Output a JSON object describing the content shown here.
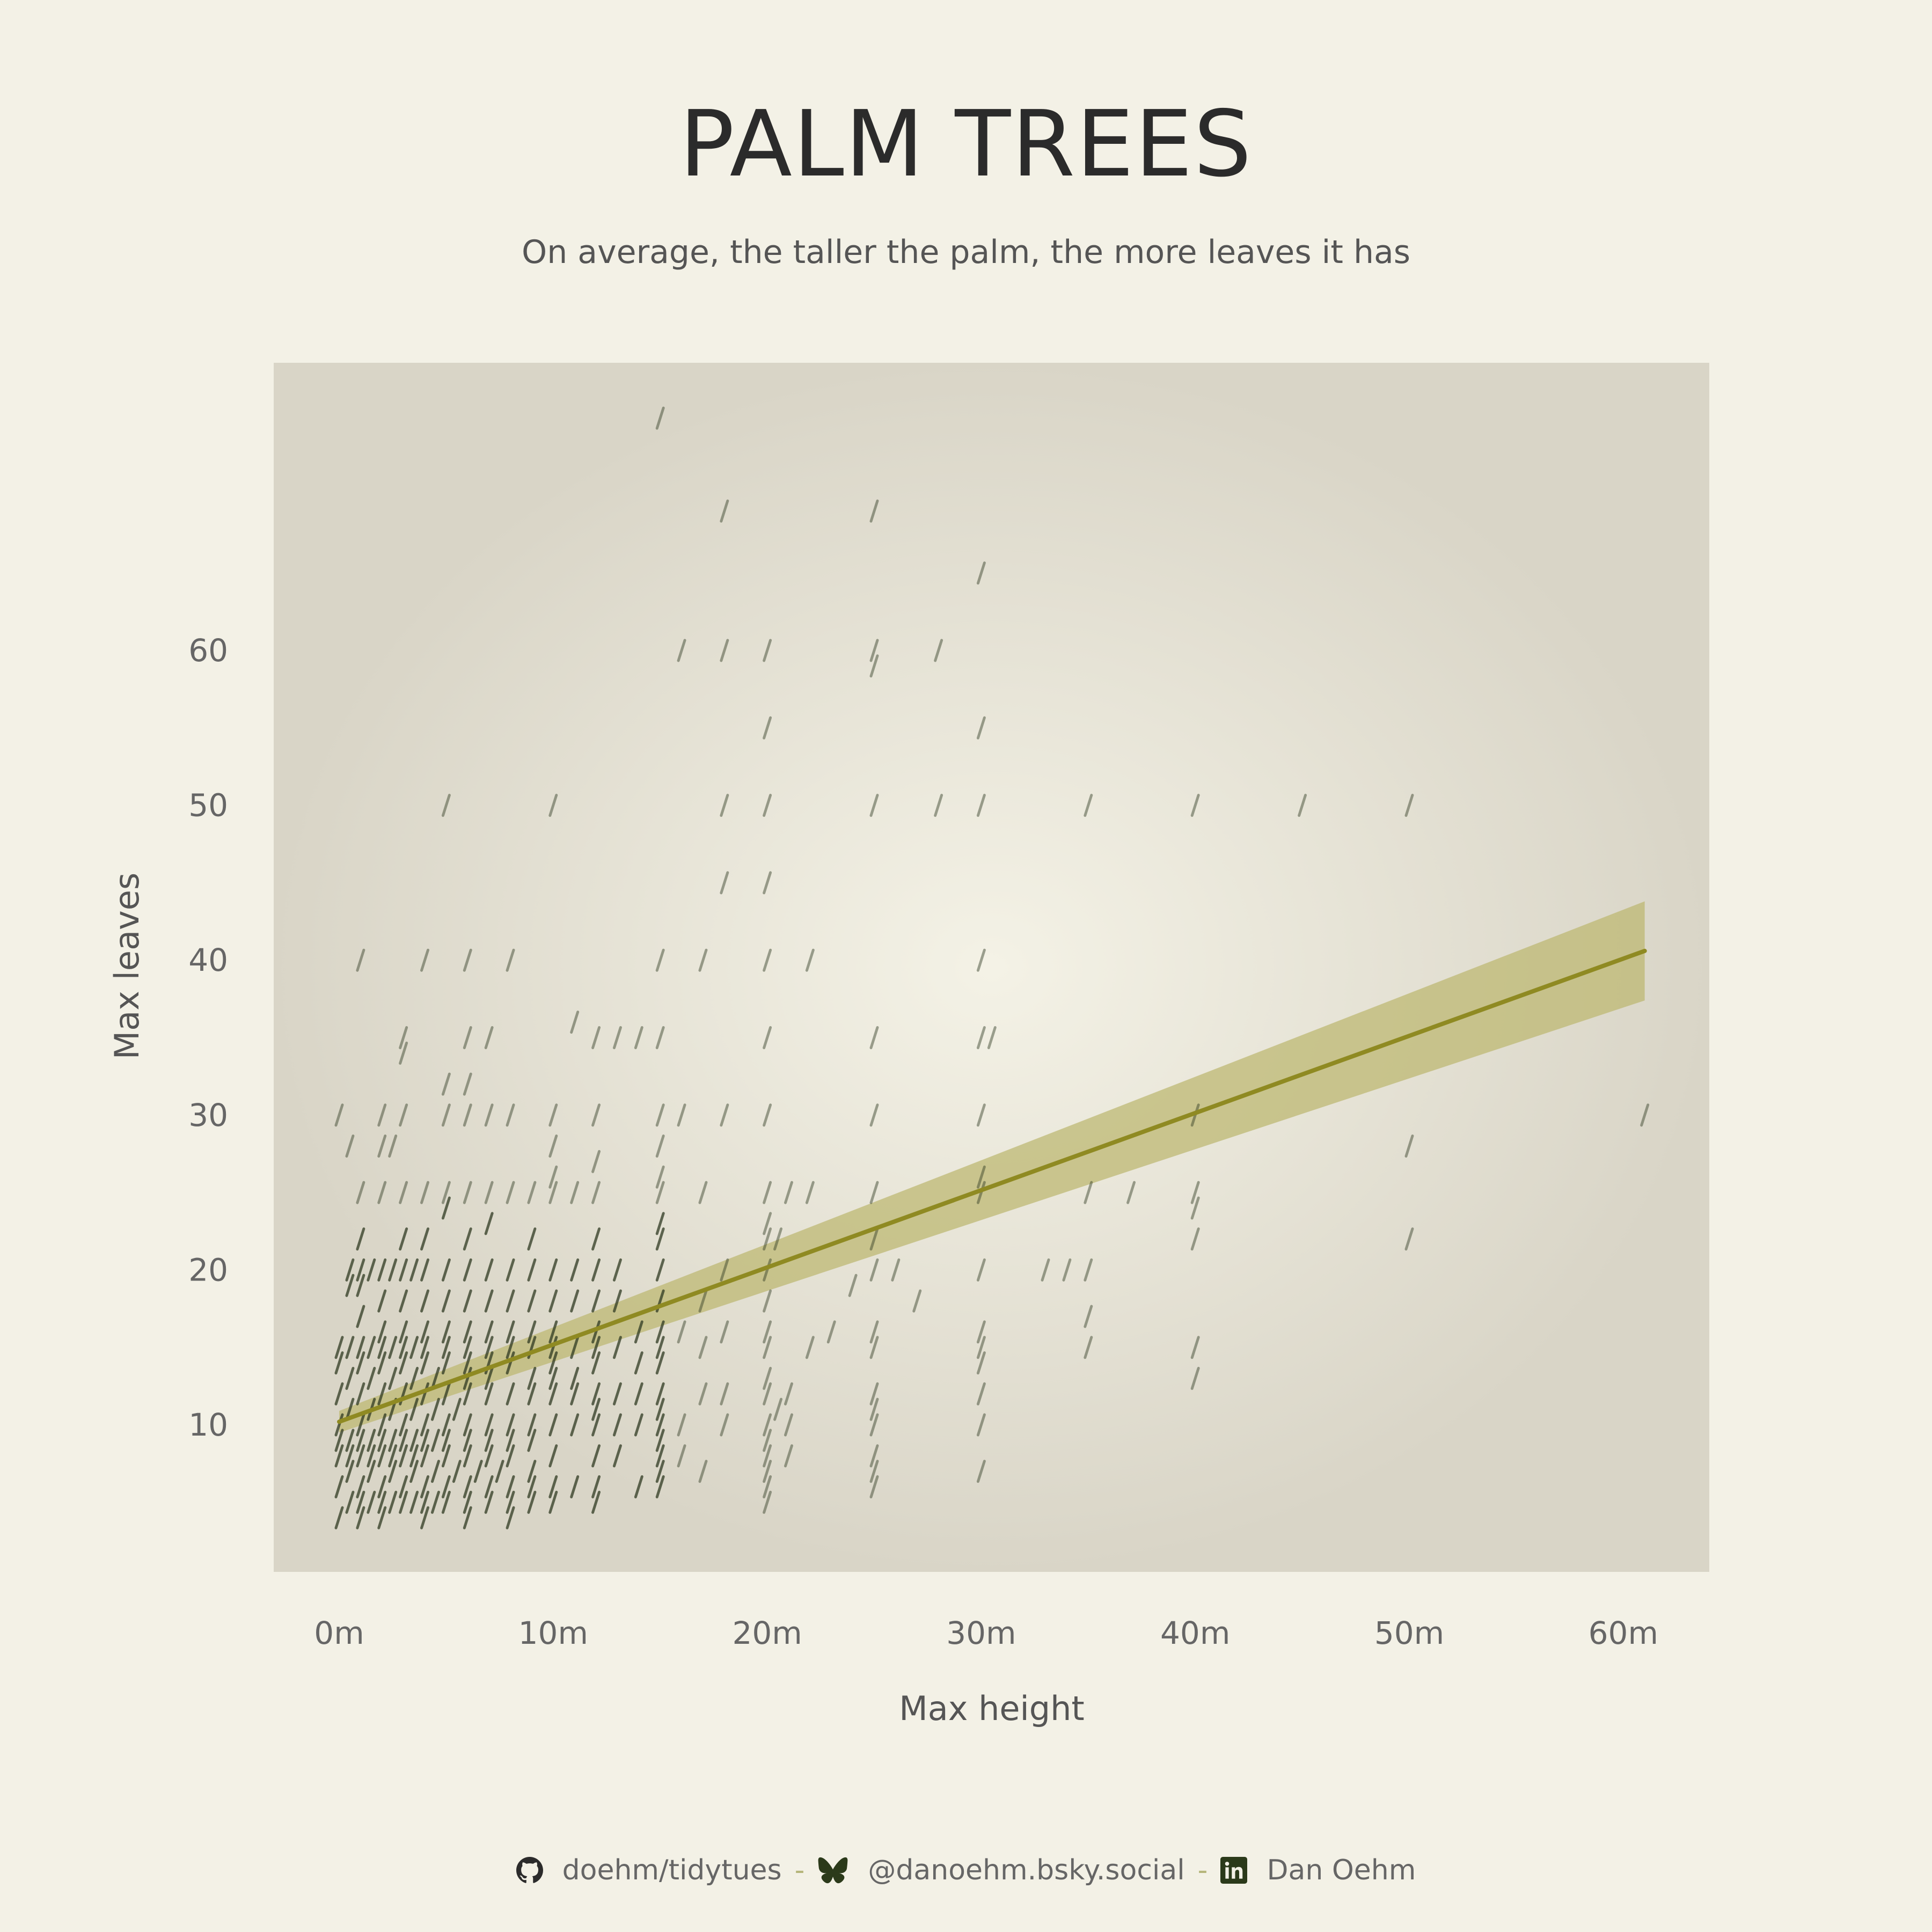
{
  "title": "PALM TREES",
  "subtitle": "On average, the taller the palm, the more leaves it has",
  "footer": {
    "github": "doehm/tidytues",
    "bluesky": "@danoehm.bsky.social",
    "linkedin": "Dan Oehm",
    "separator": "-"
  },
  "colors": {
    "background": "#f3f1e6",
    "panel": "#d9d5c7",
    "panel_center": "#f4f2e6",
    "trend": "#8f8a22",
    "ribbon": "#bdb873",
    "points": "#2f3a22"
  },
  "chart_data": {
    "type": "scatter",
    "title": "PALM TREES",
    "subtitle": "On average, the taller the palm, the more leaves it has",
    "xlabel": "Max height",
    "ylabel": "Max leaves",
    "xlim": [
      -3,
      64
    ],
    "ylim": [
      0,
      79
    ],
    "x_ticks": [
      0,
      10,
      20,
      30,
      40,
      50,
      60
    ],
    "x_tick_labels": [
      "0m",
      "10m",
      "20m",
      "30m",
      "40m",
      "50m",
      "60m"
    ],
    "y_ticks": [
      10,
      20,
      30,
      40,
      50,
      60
    ],
    "y_tick_labels": [
      "10",
      "20",
      "30",
      "40",
      "50",
      "60"
    ],
    "grid": false,
    "point_glyph": "/",
    "trend": {
      "method": "linear",
      "x": [
        0,
        61
      ],
      "y": [
        10.2,
        40.6
      ],
      "ci_lower": [
        9.5,
        37.4
      ],
      "ci_upper": [
        10.9,
        43.8
      ]
    },
    "points": [
      [
        15,
        75
      ],
      [
        18,
        69
      ],
      [
        25,
        69
      ],
      [
        30,
        65
      ],
      [
        16,
        60
      ],
      [
        18,
        60
      ],
      [
        20,
        60
      ],
      [
        25,
        60
      ],
      [
        28,
        60
      ],
      [
        25,
        59
      ],
      [
        20,
        55
      ],
      [
        30,
        55
      ],
      [
        5,
        50
      ],
      [
        10,
        50
      ],
      [
        18,
        50
      ],
      [
        20,
        50
      ],
      [
        25,
        50
      ],
      [
        28,
        50
      ],
      [
        30,
        50
      ],
      [
        35,
        50
      ],
      [
        40,
        50
      ],
      [
        45,
        50
      ],
      [
        50,
        50
      ],
      [
        18,
        45
      ],
      [
        20,
        45
      ],
      [
        1,
        40
      ],
      [
        4,
        40
      ],
      [
        6,
        40
      ],
      [
        8,
        40
      ],
      [
        15,
        40
      ],
      [
        17,
        40
      ],
      [
        20,
        40
      ],
      [
        22,
        40
      ],
      [
        30,
        40
      ],
      [
        11,
        36
      ],
      [
        3,
        35
      ],
      [
        6,
        35
      ],
      [
        7,
        35
      ],
      [
        12,
        35
      ],
      [
        13,
        35
      ],
      [
        14,
        35
      ],
      [
        15,
        35
      ],
      [
        20,
        35
      ],
      [
        25,
        35
      ],
      [
        30,
        35
      ],
      [
        30.5,
        35
      ],
      [
        3,
        34
      ],
      [
        5,
        32
      ],
      [
        6,
        32
      ],
      [
        0,
        30
      ],
      [
        2,
        30
      ],
      [
        3,
        30
      ],
      [
        5,
        30
      ],
      [
        6,
        30
      ],
      [
        7,
        30
      ],
      [
        8,
        30
      ],
      [
        10,
        30
      ],
      [
        12,
        30
      ],
      [
        15,
        30
      ],
      [
        16,
        30
      ],
      [
        18,
        30
      ],
      [
        20,
        30
      ],
      [
        25,
        30
      ],
      [
        30,
        30
      ],
      [
        40,
        30
      ],
      [
        61,
        30
      ],
      [
        0.5,
        28
      ],
      [
        2,
        28
      ],
      [
        2.5,
        28
      ],
      [
        10,
        28
      ],
      [
        15,
        28
      ],
      [
        50,
        28
      ],
      [
        12,
        27
      ],
      [
        10,
        26
      ],
      [
        15,
        26
      ],
      [
        30,
        26
      ],
      [
        1,
        25
      ],
      [
        2,
        25
      ],
      [
        3,
        25
      ],
      [
        4,
        25
      ],
      [
        5,
        25
      ],
      [
        6,
        25
      ],
      [
        7,
        25
      ],
      [
        8,
        25
      ],
      [
        9,
        25
      ],
      [
        10,
        25
      ],
      [
        11,
        25
      ],
      [
        12,
        25
      ],
      [
        15,
        25
      ],
      [
        17,
        25
      ],
      [
        20,
        25
      ],
      [
        21,
        25
      ],
      [
        22,
        25
      ],
      [
        25,
        25
      ],
      [
        30,
        25
      ],
      [
        35,
        25
      ],
      [
        37,
        25
      ],
      [
        40,
        25
      ],
      [
        5,
        24
      ],
      [
        7,
        23
      ],
      [
        15,
        23
      ],
      [
        20,
        23
      ],
      [
        40,
        24
      ],
      [
        1,
        22
      ],
      [
        3,
        22
      ],
      [
        4,
        22
      ],
      [
        6,
        22
      ],
      [
        9,
        22
      ],
      [
        12,
        22
      ],
      [
        15,
        22
      ],
      [
        20,
        22
      ],
      [
        20.5,
        22
      ],
      [
        25,
        22
      ],
      [
        40,
        22
      ],
      [
        50,
        22
      ],
      [
        0.5,
        20
      ],
      [
        1,
        20
      ],
      [
        1.5,
        20
      ],
      [
        2,
        20
      ],
      [
        2.5,
        20
      ],
      [
        3,
        20
      ],
      [
        3.5,
        20
      ],
      [
        4,
        20
      ],
      [
        5,
        20
      ],
      [
        6,
        20
      ],
      [
        7,
        20
      ],
      [
        8,
        20
      ],
      [
        9,
        20
      ],
      [
        10,
        20
      ],
      [
        11,
        20
      ],
      [
        12,
        20
      ],
      [
        13,
        20
      ],
      [
        15,
        20
      ],
      [
        18,
        20
      ],
      [
        20,
        20
      ],
      [
        25,
        20
      ],
      [
        26,
        20
      ],
      [
        30,
        20
      ],
      [
        33,
        20
      ],
      [
        34,
        20
      ],
      [
        35,
        20
      ],
      [
        0.5,
        19
      ],
      [
        1,
        19
      ],
      [
        2,
        18
      ],
      [
        3,
        18
      ],
      [
        4,
        18
      ],
      [
        5,
        18
      ],
      [
        6,
        18
      ],
      [
        7,
        18
      ],
      [
        8,
        18
      ],
      [
        9,
        18
      ],
      [
        10,
        18
      ],
      [
        11,
        18
      ],
      [
        12,
        18
      ],
      [
        13,
        18
      ],
      [
        15,
        18
      ],
      [
        17,
        18
      ],
      [
        20,
        18
      ],
      [
        24,
        19
      ],
      [
        27,
        18
      ],
      [
        1,
        17
      ],
      [
        2,
        16
      ],
      [
        3,
        16
      ],
      [
        4,
        16
      ],
      [
        5,
        16
      ],
      [
        6,
        16
      ],
      [
        7,
        16
      ],
      [
        8,
        16
      ],
      [
        9,
        16
      ],
      [
        10,
        16
      ],
      [
        12,
        16
      ],
      [
        14,
        16
      ],
      [
        15,
        16
      ],
      [
        16,
        16
      ],
      [
        18,
        16
      ],
      [
        20,
        16
      ],
      [
        23,
        16
      ],
      [
        25,
        16
      ],
      [
        30,
        16
      ],
      [
        35,
        17
      ],
      [
        0,
        15
      ],
      [
        0.5,
        15
      ],
      [
        1,
        15
      ],
      [
        1.5,
        15
      ],
      [
        2,
        15
      ],
      [
        2.5,
        15
      ],
      [
        3,
        15
      ],
      [
        3.5,
        15
      ],
      [
        4,
        15
      ],
      [
        5,
        15
      ],
      [
        6,
        15
      ],
      [
        7,
        15
      ],
      [
        8,
        15
      ],
      [
        9,
        15
      ],
      [
        10,
        15
      ],
      [
        11,
        15
      ],
      [
        12,
        15
      ],
      [
        13,
        15
      ],
      [
        15,
        15
      ],
      [
        17,
        15
      ],
      [
        20,
        15
      ],
      [
        22,
        15
      ],
      [
        25,
        15
      ],
      [
        30,
        15
      ],
      [
        35,
        15
      ],
      [
        40,
        15
      ],
      [
        0,
        14
      ],
      [
        1,
        14
      ],
      [
        2,
        14
      ],
      [
        3,
        14
      ],
      [
        4,
        14
      ],
      [
        5,
        14
      ],
      [
        6,
        14
      ],
      [
        7,
        14
      ],
      [
        8,
        14
      ],
      [
        10,
        14
      ],
      [
        12,
        14
      ],
      [
        14,
        14
      ],
      [
        15,
        14
      ],
      [
        30,
        14
      ],
      [
        0.5,
        13
      ],
      [
        1.5,
        13
      ],
      [
        2.5,
        13
      ],
      [
        3.5,
        13
      ],
      [
        4.5,
        13
      ],
      [
        6,
        13
      ],
      [
        7,
        13
      ],
      [
        9,
        13
      ],
      [
        10,
        13
      ],
      [
        11,
        13
      ],
      [
        20,
        13
      ],
      [
        40,
        13
      ],
      [
        0,
        12
      ],
      [
        1,
        12
      ],
      [
        2,
        12
      ],
      [
        3,
        12
      ],
      [
        4,
        12
      ],
      [
        5,
        12
      ],
      [
        6,
        12
      ],
      [
        7,
        12
      ],
      [
        8,
        12
      ],
      [
        9,
        12
      ],
      [
        10,
        12
      ],
      [
        11,
        12
      ],
      [
        12,
        12
      ],
      [
        13,
        12
      ],
      [
        14,
        12
      ],
      [
        15,
        12
      ],
      [
        17,
        12
      ],
      [
        18,
        12
      ],
      [
        20,
        12
      ],
      [
        21,
        12
      ],
      [
        25,
        12
      ],
      [
        30,
        12
      ],
      [
        0.5,
        11
      ],
      [
        1.5,
        11
      ],
      [
        2.5,
        11
      ],
      [
        3.5,
        11
      ],
      [
        4.5,
        11
      ],
      [
        5.5,
        11
      ],
      [
        12,
        11
      ],
      [
        15,
        11
      ],
      [
        20.5,
        11
      ],
      [
        25,
        11
      ],
      [
        0,
        10
      ],
      [
        1,
        10
      ],
      [
        2,
        10
      ],
      [
        3,
        10
      ],
      [
        4,
        10
      ],
      [
        5,
        10
      ],
      [
        6,
        10
      ],
      [
        7,
        10
      ],
      [
        8,
        10
      ],
      [
        9,
        10
      ],
      [
        10,
        10
      ],
      [
        11,
        10
      ],
      [
        12,
        10
      ],
      [
        13,
        10
      ],
      [
        14,
        10
      ],
      [
        15,
        10
      ],
      [
        16,
        10
      ],
      [
        18,
        10
      ],
      [
        20,
        10
      ],
      [
        21,
        10
      ],
      [
        25,
        10
      ],
      [
        30,
        10
      ],
      [
        0,
        9
      ],
      [
        0.5,
        9
      ],
      [
        1,
        9
      ],
      [
        1.5,
        9
      ],
      [
        2,
        9
      ],
      [
        2.5,
        9
      ],
      [
        3,
        9
      ],
      [
        3.5,
        9
      ],
      [
        4,
        9
      ],
      [
        4.5,
        9
      ],
      [
        5,
        9
      ],
      [
        6,
        9
      ],
      [
        7,
        9
      ],
      [
        8,
        9
      ],
      [
        9,
        9
      ],
      [
        15,
        9
      ],
      [
        20,
        9
      ],
      [
        0,
        8
      ],
      [
        0.5,
        8
      ],
      [
        1,
        8
      ],
      [
        1.5,
        8
      ],
      [
        2,
        8
      ],
      [
        2.5,
        8
      ],
      [
        3,
        8
      ],
      [
        3.5,
        8
      ],
      [
        4,
        8
      ],
      [
        5,
        8
      ],
      [
        6,
        8
      ],
      [
        7,
        8
      ],
      [
        8,
        8
      ],
      [
        10,
        8
      ],
      [
        12,
        8
      ],
      [
        13,
        8
      ],
      [
        15,
        8
      ],
      [
        16,
        8
      ],
      [
        20,
        8
      ],
      [
        21,
        8
      ],
      [
        25,
        8
      ],
      [
        0.5,
        7
      ],
      [
        1.5,
        7
      ],
      [
        2.5,
        7
      ],
      [
        3.5,
        7
      ],
      [
        4.5,
        7
      ],
      [
        5.5,
        7
      ],
      [
        6.5,
        7
      ],
      [
        7.5,
        7
      ],
      [
        9,
        7
      ],
      [
        15,
        7
      ],
      [
        17,
        7
      ],
      [
        20,
        7
      ],
      [
        25,
        7
      ],
      [
        30,
        7
      ],
      [
        0,
        6
      ],
      [
        1,
        6
      ],
      [
        2,
        6
      ],
      [
        3,
        6
      ],
      [
        4,
        6
      ],
      [
        5,
        6
      ],
      [
        6,
        6
      ],
      [
        7,
        6
      ],
      [
        8,
        6
      ],
      [
        9,
        6
      ],
      [
        10,
        6
      ],
      [
        11,
        6
      ],
      [
        12,
        6
      ],
      [
        14,
        6
      ],
      [
        15,
        6
      ],
      [
        20,
        6
      ],
      [
        25,
        6
      ],
      [
        0.5,
        5
      ],
      [
        1,
        5
      ],
      [
        1.5,
        5
      ],
      [
        2,
        5
      ],
      [
        2.5,
        5
      ],
      [
        3,
        5
      ],
      [
        3.5,
        5
      ],
      [
        4,
        5
      ],
      [
        4.5,
        5
      ],
      [
        5,
        5
      ],
      [
        6,
        5
      ],
      [
        7,
        5
      ],
      [
        8,
        5
      ],
      [
        9,
        5
      ],
      [
        10,
        5
      ],
      [
        12,
        5
      ],
      [
        20,
        5
      ],
      [
        0,
        4
      ],
      [
        1,
        4
      ],
      [
        2,
        4
      ],
      [
        4,
        4
      ],
      [
        6,
        4
      ],
      [
        8,
        4
      ]
    ]
  }
}
